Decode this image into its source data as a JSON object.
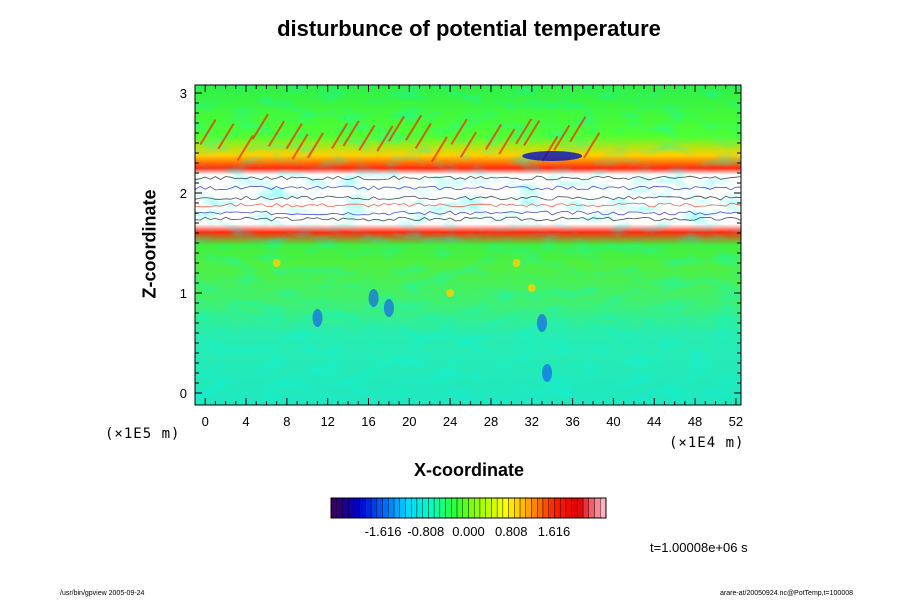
{
  "chart_data": {
    "type": "heatmap",
    "title": "disturbunce of potential temperature",
    "xlabel": "X-coordinate",
    "ylabel": "Z-coordinate",
    "x_ticks": [
      "0",
      "4",
      "8",
      "12",
      "16",
      "20",
      "24",
      "28",
      "32",
      "36",
      "40",
      "44",
      "48",
      "52"
    ],
    "y_ticks": [
      "0",
      "1",
      "2",
      "3"
    ],
    "xlim": [
      -1,
      52.5
    ],
    "ylim": [
      -0.12,
      3.08
    ],
    "x_unit": "(×1E4 m)",
    "y_unit": "(×1E5 m)",
    "colorbar_ticks": [
      "-1.616",
      "-0.808",
      "0.000",
      "0.808",
      "1.616"
    ],
    "colorbar_range": [
      -2.6,
      2.6
    ],
    "colormap": [
      "#3a0066",
      "#0000c8",
      "#0060ff",
      "#00d8ff",
      "#00ffc0",
      "#30ff30",
      "#a0ff00",
      "#ffff00",
      "#ffa000",
      "#ff2000",
      "#e00000",
      "#ffb0c0"
    ],
    "annotation": "t=1.00008e+06 s",
    "bands": [
      {
        "z": 0.35,
        "label": "cyan",
        "color": "#10f0d0"
      },
      {
        "z": 1.1,
        "label": "light green",
        "color": "#38f060"
      },
      {
        "z": 1.62,
        "label": "red",
        "color": "#ff3010"
      },
      {
        "z": 1.8,
        "label": "white",
        "color": "#ffffff"
      },
      {
        "z": 2.3,
        "label": "red",
        "color": "#ff3010"
      },
      {
        "z": 2.75,
        "label": "green",
        "color": "#30ff40"
      }
    ]
  },
  "footer": {
    "left": "/usr/bin/gpview 2005-09-24",
    "right": "arare-at/20050924.nc@PotTemp,t=100008"
  }
}
